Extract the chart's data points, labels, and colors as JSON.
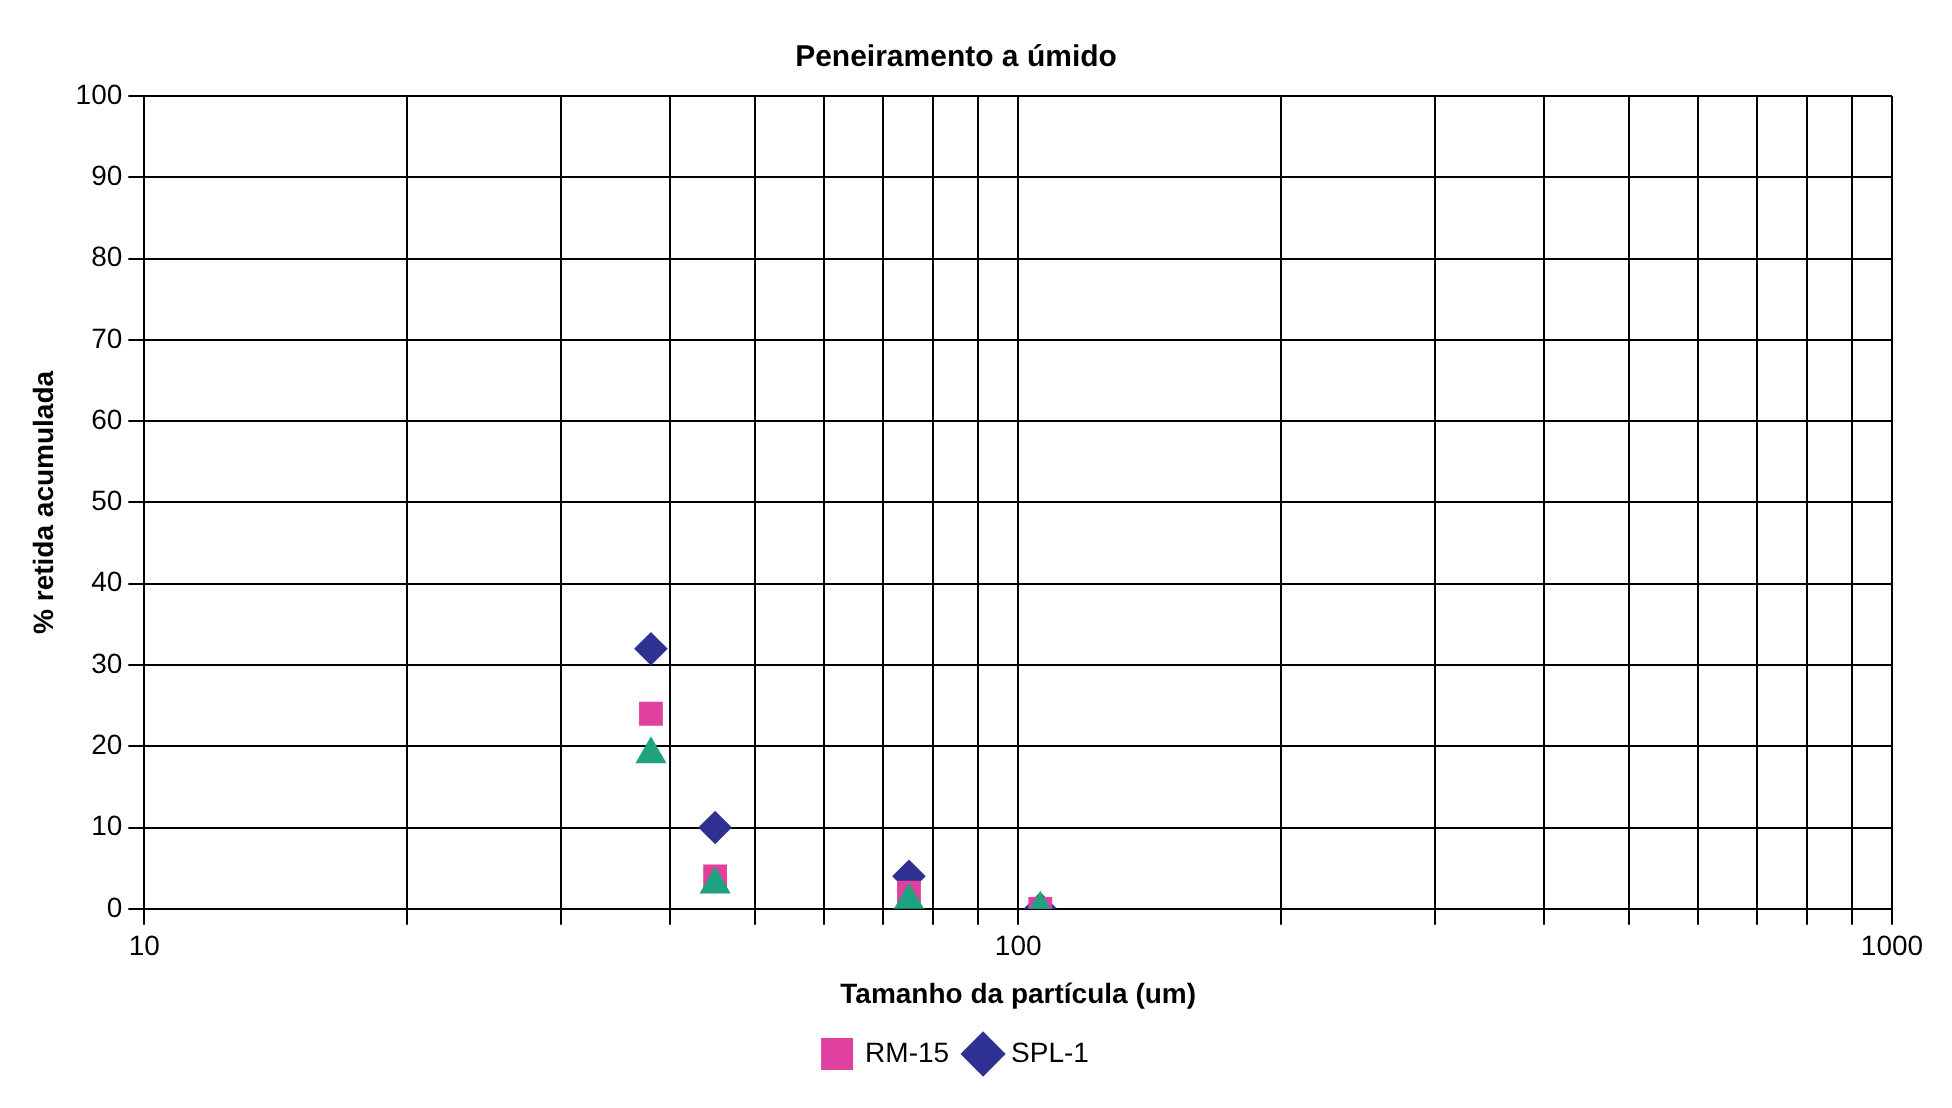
{
  "chart_data": {
    "type": "scatter",
    "title": "Peneiramento a úmido",
    "xlabel": "Tamanho da partícula (um)",
    "ylabel": "% retida acumulada",
    "x": [
      106,
      75,
      45,
      38
    ],
    "series": [
      {
        "name": "SPL-1",
        "color": "#2e3192",
        "marker": "diamond",
        "values": [
          0,
          4,
          10,
          32
        ]
      },
      {
        "name": "RM-15",
        "color": "#e040a0",
        "marker": "square",
        "values": [
          0,
          2,
          4,
          24
        ]
      },
      {
        "color": "#1fa37f",
        "marker": "triangle",
        "values": [
          0,
          1,
          3,
          19
        ]
      }
    ],
    "log": "x",
    "xlim": [
      10,
      1000
    ],
    "xticks": [
      10,
      {
        "value": 20,
        "label": null
      },
      {
        "value": 30,
        "label": null
      },
      {
        "value": 40,
        "label": null
      },
      {
        "value": 50,
        "label": null
      },
      {
        "value": 60,
        "label": null
      },
      {
        "value": 70,
        "label": null
      },
      {
        "value": 80,
        "label": null
      },
      {
        "value": 90,
        "label": null
      },
      100,
      {
        "value": 200,
        "label": null
      },
      {
        "value": 300,
        "label": null
      },
      {
        "value": 400,
        "label": null
      },
      {
        "value": 500,
        "label": null
      },
      {
        "value": 600,
        "label": null
      },
      {
        "value": 700,
        "label": null
      },
      {
        "value": 800,
        "label": null
      },
      {
        "value": 900,
        "label": null
      },
      1000
    ],
    "ylim": [
      0,
      100
    ],
    "yticks": [
      0,
      10,
      20,
      30,
      40,
      50,
      60,
      70,
      80,
      90,
      100
    ],
    "grid": true,
    "legend": "bottom"
  }
}
